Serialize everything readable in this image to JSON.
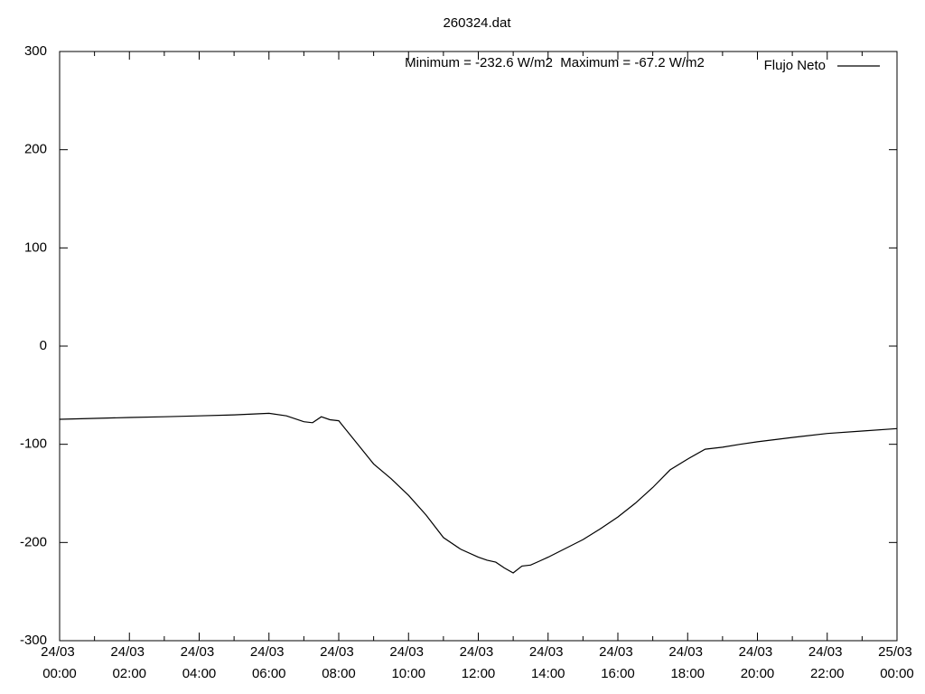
{
  "chart_data": {
    "type": "line",
    "title": "260324.dat",
    "annotation": "Minimum = -232.6 W/m2  Maximum = -67.2 W/m2",
    "x": [
      0,
      1,
      2,
      3,
      4,
      5,
      6,
      6.5,
      7,
      7.25,
      7.5,
      7.75,
      8,
      8.5,
      9,
      9.5,
      10,
      10.5,
      11,
      11.5,
      12,
      12.25,
      12.5,
      12.75,
      13,
      13.25,
      13.5,
      13.75,
      14,
      14.5,
      15,
      15.5,
      16,
      16.5,
      17,
      17.5,
      18,
      18.5,
      19,
      19.5,
      20,
      21,
      22,
      23,
      24
    ],
    "series": [
      {
        "name": "Flujo Neto",
        "color": "#000000",
        "values": [
          -74.5,
          -73.6,
          -72.7,
          -72,
          -71,
          -70,
          -68.5,
          -71,
          -77,
          -78,
          -72,
          -75,
          -76,
          -98,
          -120,
          -135,
          -152,
          -172,
          -195,
          -207,
          -215,
          -218,
          -220,
          -226,
          -231,
          -224,
          -223,
          -219,
          -215,
          -206,
          -197,
          -186,
          -174,
          -160,
          -144,
          -126,
          -115,
          -105,
          -103,
          -100,
          -97.5,
          -93,
          -89,
          -86.5,
          -84
        ]
      }
    ],
    "xlim": [
      0,
      24
    ],
    "xticks": [
      {
        "value": 0,
        "label": "24/03 00:00"
      },
      {
        "value": 2,
        "label": "24/03 02:00"
      },
      {
        "value": 4,
        "label": "24/03 04:00"
      },
      {
        "value": 6,
        "label": "24/03 06:00"
      },
      {
        "value": 8,
        "label": "24/03 08:00"
      },
      {
        "value": 10,
        "label": "24/03 10:00"
      },
      {
        "value": 12,
        "label": "24/03 12:00"
      },
      {
        "value": 14,
        "label": "24/03 14:00"
      },
      {
        "value": 16,
        "label": "24/03 16:00"
      },
      {
        "value": 18,
        "label": "24/03 18:00"
      },
      {
        "value": 20,
        "label": "24/03 20:00"
      },
      {
        "value": 22,
        "label": "24/03 22:00"
      },
      {
        "value": 24,
        "label": "25/03 00:00"
      }
    ],
    "xminorticks": [
      1,
      3,
      5,
      7,
      9,
      11,
      13,
      15,
      17,
      19,
      21,
      23
    ],
    "ylim": [
      -300,
      300
    ],
    "yticks": [
      -300,
      -200,
      -100,
      0,
      100,
      200,
      300
    ],
    "grid": false,
    "legend": "top-right"
  }
}
